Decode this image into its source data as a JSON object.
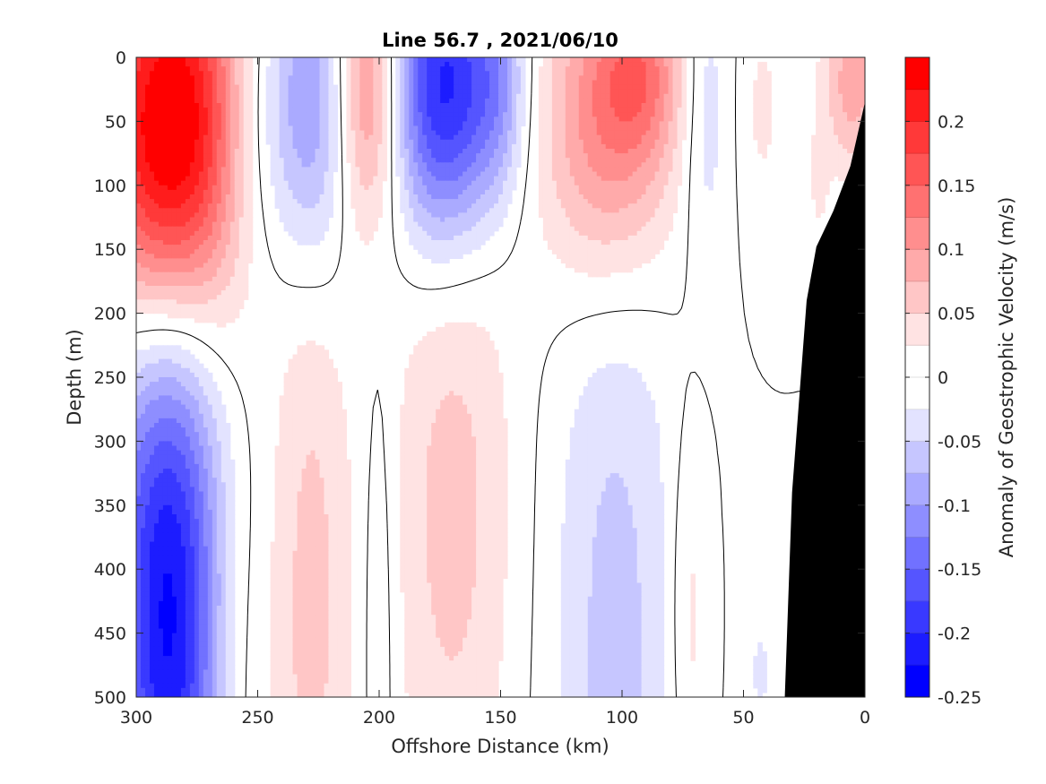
{
  "chart_data": {
    "type": "heatmap",
    "title": "Line 56.7 , 2021/06/10",
    "xlabel": "Offshore Distance (km)",
    "ylabel": "Depth (m)",
    "colorbar_label": "Anomaly of Geostrophic Velocity (m/s)",
    "xlim": [
      300,
      0
    ],
    "ylim": [
      500,
      0
    ],
    "x_ticks": [
      300,
      250,
      200,
      150,
      100,
      50,
      0
    ],
    "x_tick_labels": [
      "300",
      "250",
      "200",
      "150",
      "100",
      "50",
      "0"
    ],
    "y_ticks": [
      0,
      50,
      100,
      150,
      200,
      250,
      300,
      350,
      400,
      450,
      500
    ],
    "y_tick_labels": [
      "0",
      "50",
      "100",
      "150",
      "200",
      "250",
      "300",
      "350",
      "400",
      "450",
      "500"
    ],
    "colorbar_range": [
      -0.25,
      0.25
    ],
    "colorbar_step": 0.025,
    "colorbar_ticks": [
      0.2,
      0.15,
      0.1,
      0.05,
      0,
      -0.05,
      -0.1,
      -0.15,
      -0.2,
      -0.25
    ],
    "colorbar_tick_labels": [
      "0.2",
      "0.15",
      "0.1",
      "0.05",
      "0",
      "-0.05",
      "-0.1",
      "-0.15",
      "-0.2",
      "-0.25"
    ],
    "colors": {
      "positive": "#ff0000",
      "negative": "#0000ff",
      "zero": "#ffffff",
      "bathymetry": "#000000"
    },
    "zero_contour": true,
    "velocity_features": [
      {
        "center_km": 285,
        "center_depth_m": 45,
        "width_km": 22,
        "depth_scale_m": 110,
        "amplitude": 0.23
      },
      {
        "center_km": 289,
        "center_depth_m": 110,
        "width_km": 20,
        "depth_scale_m": 90,
        "amplitude": 0.06
      },
      {
        "center_km": 285,
        "center_depth_m": 470,
        "width_km": 16,
        "depth_scale_m": 170,
        "amplitude": -0.2
      },
      {
        "center_km": 290,
        "center_depth_m": 330,
        "width_km": 24,
        "depth_scale_m": 140,
        "amplitude": -0.06
      },
      {
        "center_km": 255,
        "center_depth_m": 60,
        "width_km": 10,
        "depth_scale_m": 80,
        "amplitude": -0.035
      },
      {
        "center_km": 228,
        "center_depth_m": 40,
        "width_km": 15,
        "depth_scale_m": 90,
        "amplitude": -0.12
      },
      {
        "center_km": 205,
        "center_depth_m": 25,
        "width_km": 10,
        "depth_scale_m": 80,
        "amplitude": 0.15
      },
      {
        "center_km": 173,
        "center_depth_m": 25,
        "width_km": 16,
        "depth_scale_m": 85,
        "amplitude": -0.22
      },
      {
        "center_km": 150,
        "center_depth_m": 25,
        "width_km": 8,
        "depth_scale_m": 60,
        "amplitude": -0.06
      },
      {
        "center_km": 105,
        "center_depth_m": 50,
        "width_km": 20,
        "depth_scale_m": 90,
        "amplitude": 0.13
      },
      {
        "center_km": 92,
        "center_depth_m": 10,
        "width_km": 12,
        "depth_scale_m": 45,
        "amplitude": 0.07
      },
      {
        "center_km": 66,
        "center_depth_m": 40,
        "width_km": 7,
        "depth_scale_m": 90,
        "amplitude": -0.05
      },
      {
        "center_km": 42,
        "center_depth_m": 40,
        "width_km": 6,
        "depth_scale_m": 60,
        "amplitude": 0.03
      },
      {
        "center_km": 5,
        "center_depth_m": 20,
        "width_km": 9,
        "depth_scale_m": 50,
        "amplitude": 0.09
      },
      {
        "center_km": 19,
        "center_depth_m": 100,
        "width_km": 3,
        "depth_scale_m": 35,
        "amplitude": 0.03
      },
      {
        "center_km": 263,
        "center_depth_m": 450,
        "width_km": 13,
        "depth_scale_m": 160,
        "amplitude": 0.05
      },
      {
        "center_km": 228,
        "center_depth_m": 420,
        "width_km": 12,
        "depth_scale_m": 210,
        "amplitude": 0.06
      },
      {
        "center_km": 200,
        "center_depth_m": 430,
        "width_km": 5,
        "depth_scale_m": 150,
        "amplitude": -0.03
      },
      {
        "center_km": 170,
        "center_depth_m": 350,
        "width_km": 18,
        "depth_scale_m": 200,
        "amplitude": 0.06
      },
      {
        "center_km": 103,
        "center_depth_m": 460,
        "width_km": 18,
        "depth_scale_m": 240,
        "amplitude": -0.06
      },
      {
        "center_km": 72,
        "center_depth_m": 440,
        "width_km": 6,
        "depth_scale_m": 110,
        "amplitude": 0.04
      },
      {
        "center_km": 43,
        "center_depth_m": 480,
        "width_km": 4,
        "depth_scale_m": 40,
        "amplitude": -0.03
      }
    ],
    "bathymetry_profile": [
      {
        "distance_km": 0,
        "depth_m": 35
      },
      {
        "distance_km": 6,
        "depth_m": 85
      },
      {
        "distance_km": 13,
        "depth_m": 120
      },
      {
        "distance_km": 20,
        "depth_m": 148
      },
      {
        "distance_km": 24,
        "depth_m": 190
      },
      {
        "distance_km": 30,
        "depth_m": 340
      },
      {
        "distance_km": 33,
        "depth_m": 500
      }
    ]
  }
}
